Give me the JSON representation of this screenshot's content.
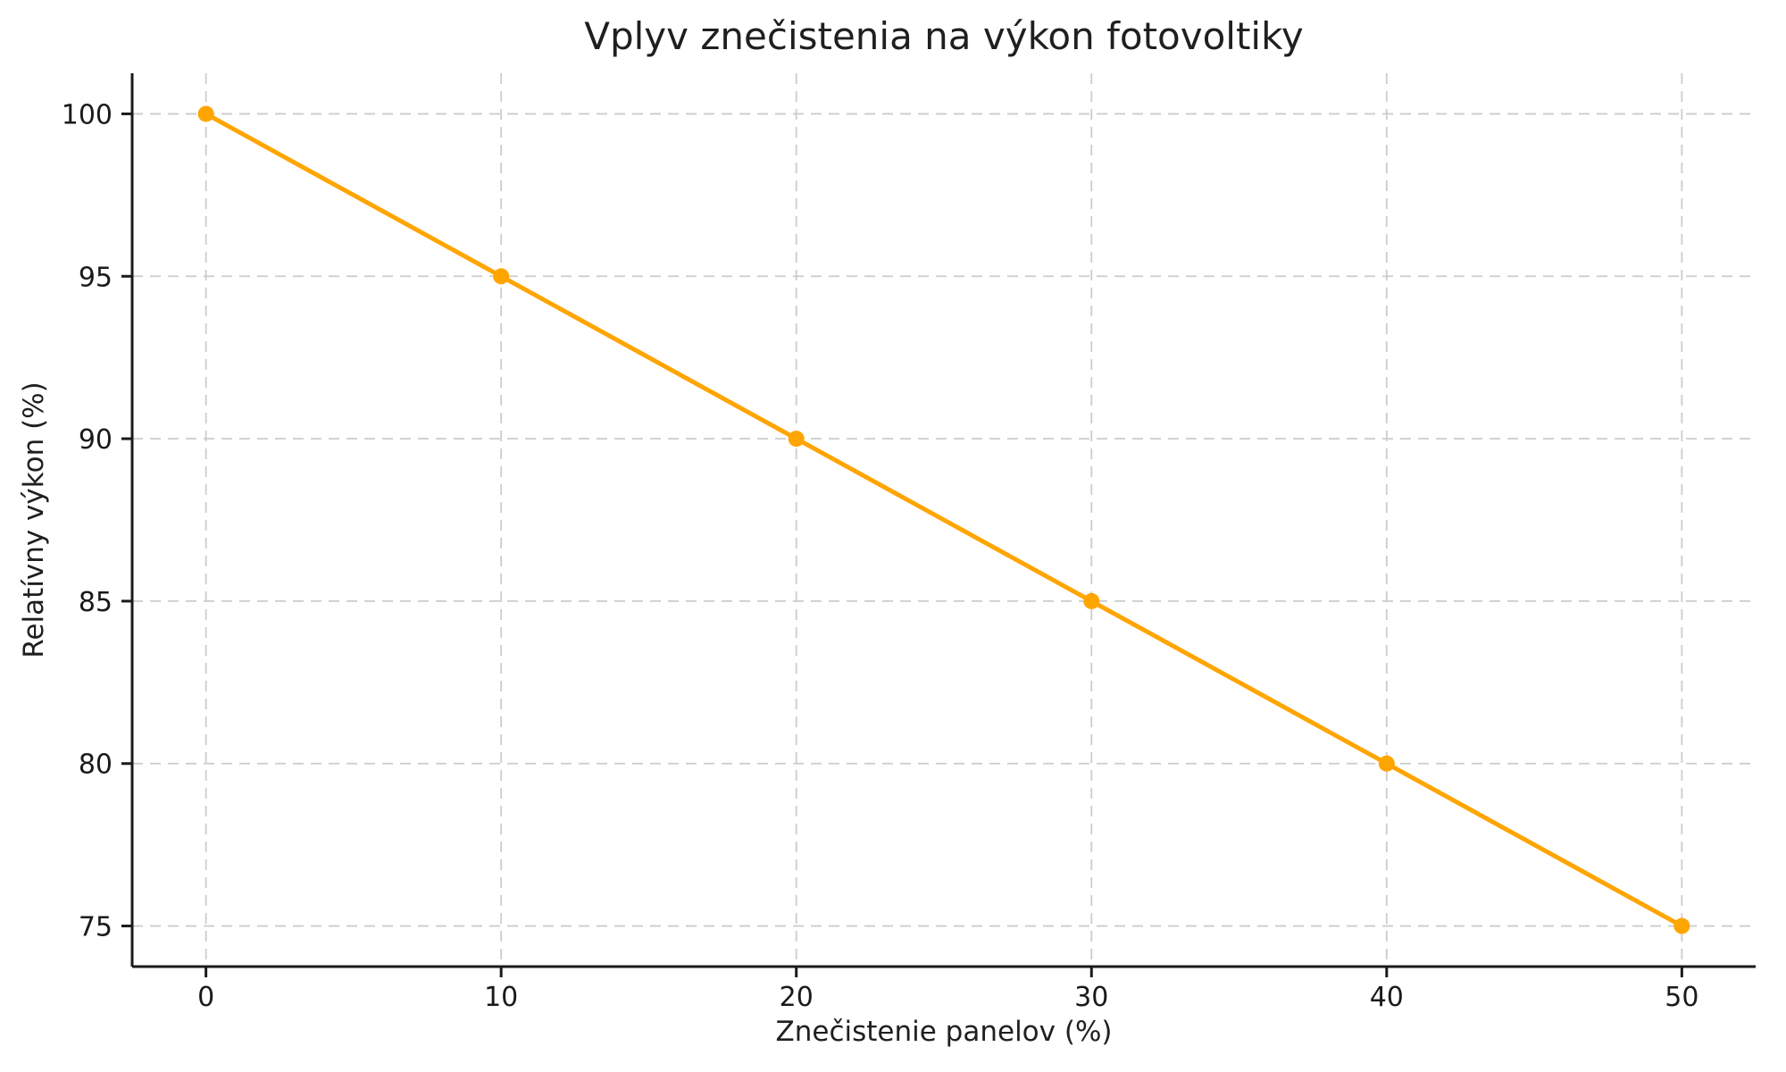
{
  "chart_data": {
    "type": "line",
    "title": "Vplyv znečistenia na výkon fotovoltiky",
    "xlabel": "Znečistenie panelov (%)",
    "ylabel": "Relatívny výkon (%)",
    "x": [
      0,
      10,
      20,
      30,
      40,
      50
    ],
    "y": [
      100,
      95,
      90,
      85,
      80,
      75
    ],
    "x_ticks": [
      0,
      10,
      20,
      30,
      40,
      50
    ],
    "y_ticks": [
      75,
      80,
      85,
      90,
      95,
      100
    ],
    "xlim": [
      -2.5,
      52.5
    ],
    "ylim": [
      73.75,
      101.25
    ],
    "grid": true,
    "grid_style": "dashed",
    "legend": "none",
    "marker": "circle",
    "colors": {
      "line": "#FFA500",
      "marker": "#FFA500",
      "grid": "#cccccc",
      "axis": "#1a1a1a",
      "tick_text": "#1a1a1a",
      "background": "#ffffff"
    }
  }
}
